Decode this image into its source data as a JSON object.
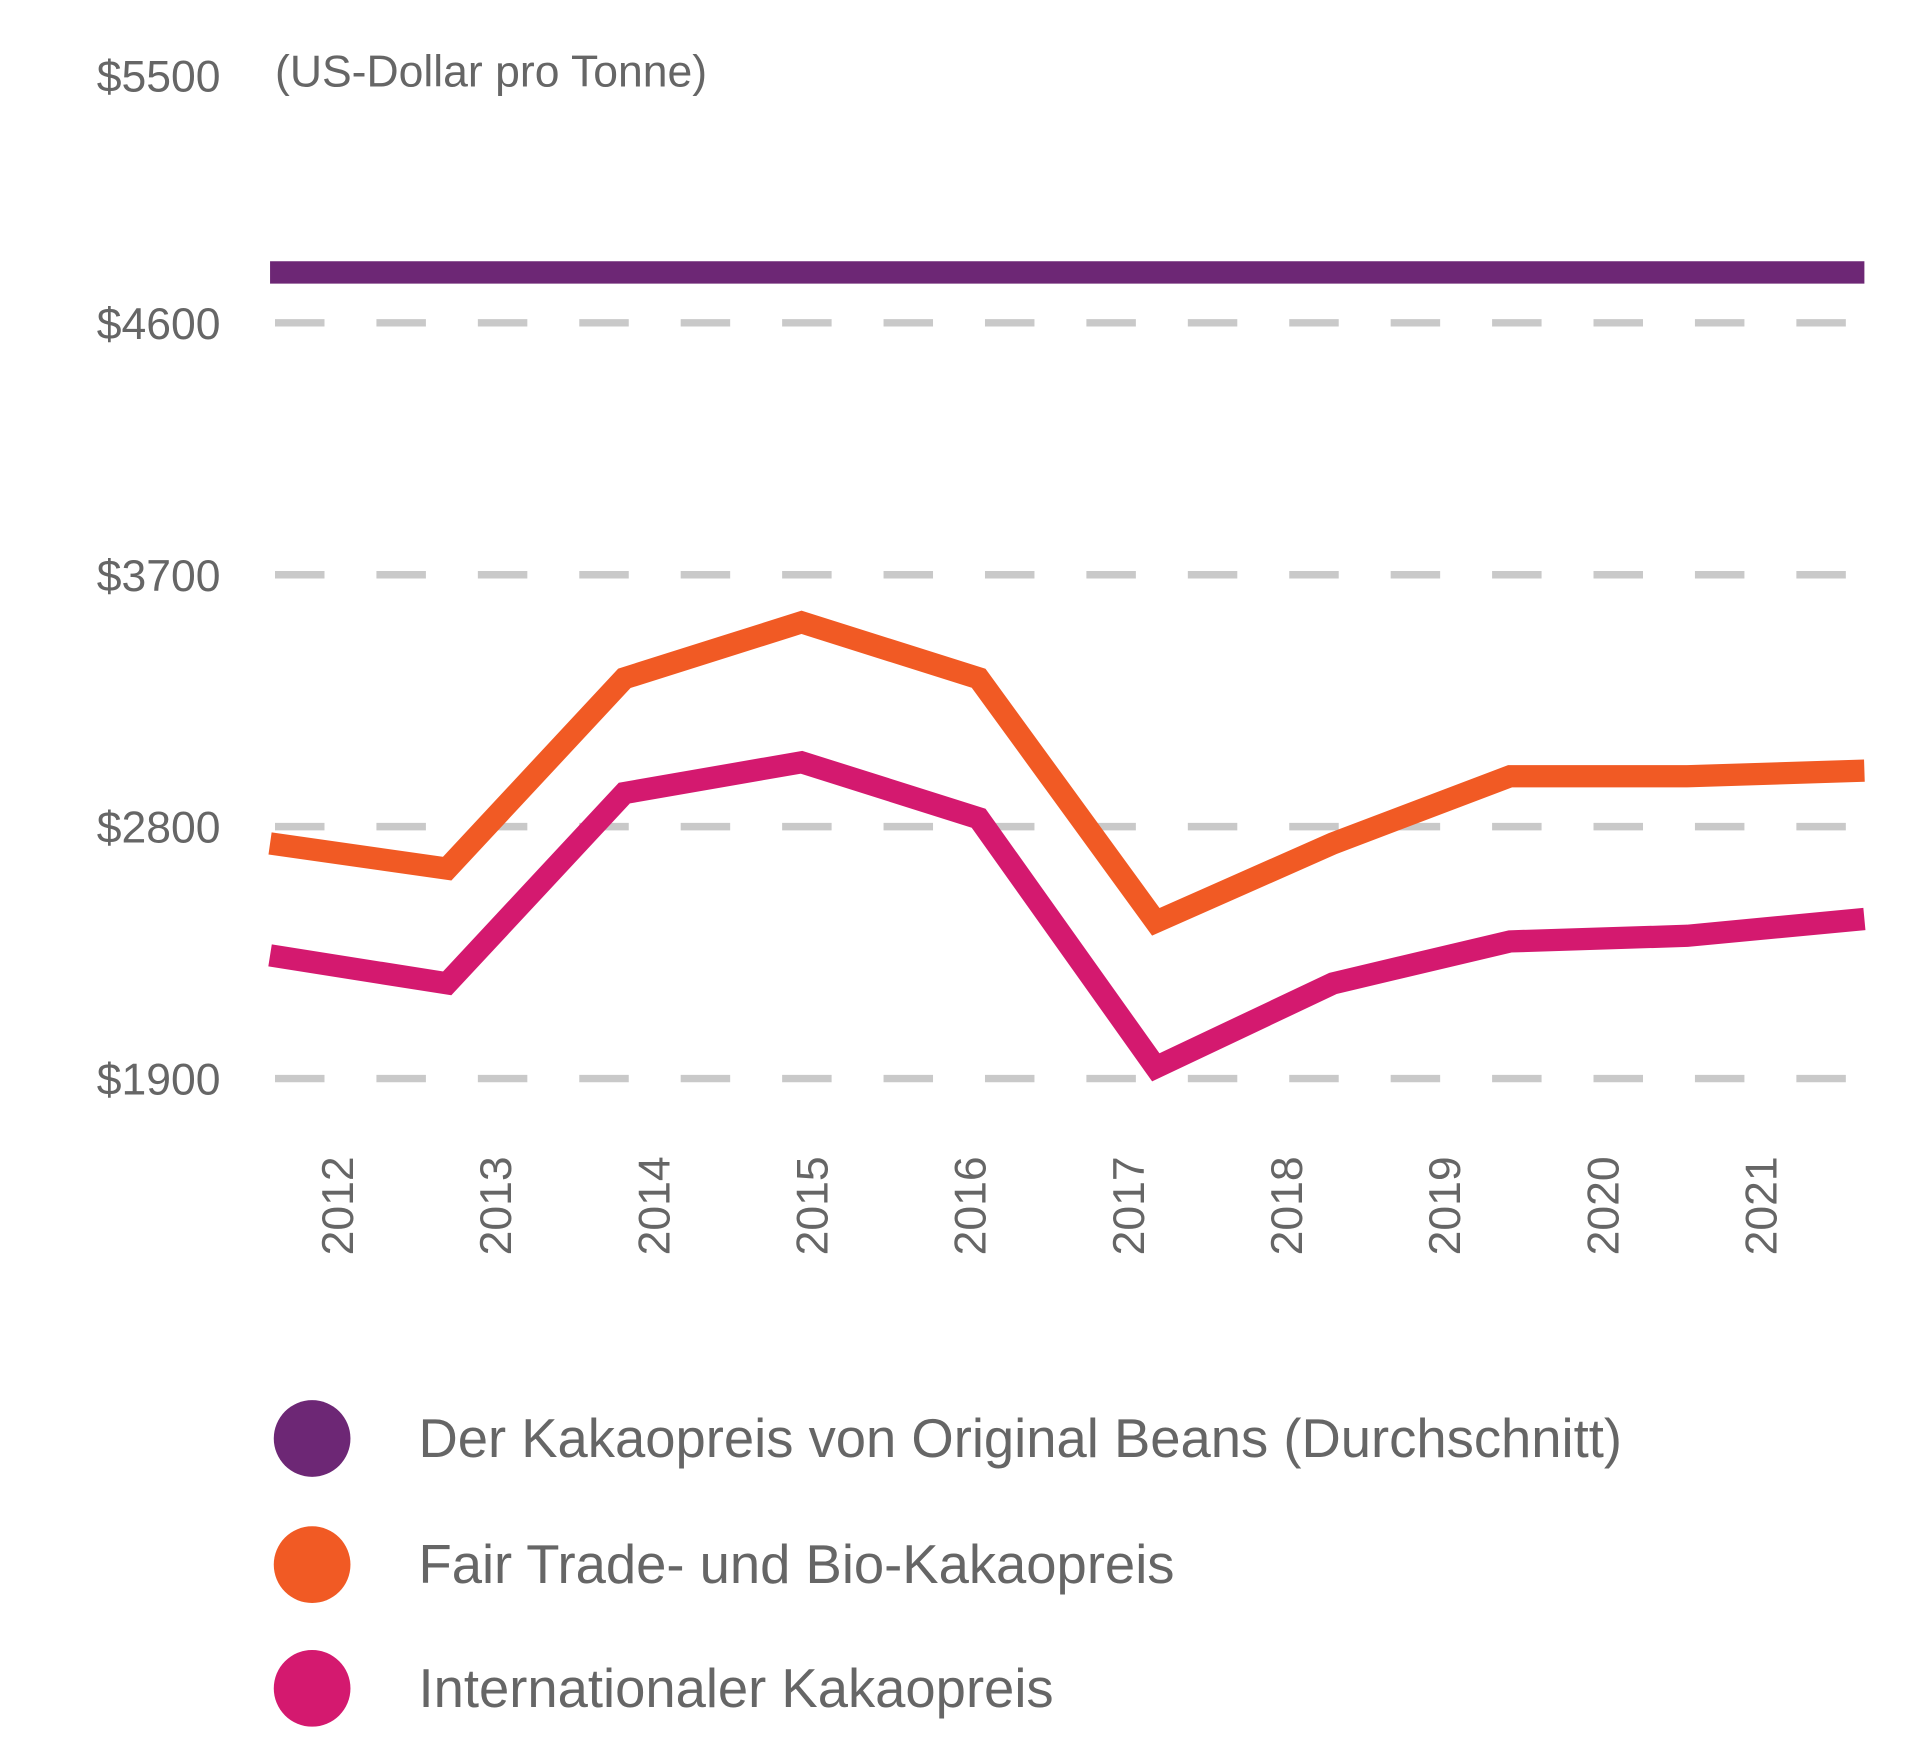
{
  "chart_data": {
    "type": "line",
    "unit_label": "(US-Dollar pro Tonne)",
    "categories": [
      "2012",
      "2013",
      "2014",
      "2015",
      "2016",
      "2017",
      "2018",
      "2019",
      "2020",
      "2021"
    ],
    "x_tick_labels": [
      "2012",
      "2013",
      "2014",
      "2015",
      "2016",
      "2017",
      "2018",
      "2019",
      "2020",
      "2021"
    ],
    "y_tick_labels": [
      "$5500",
      "$4600",
      "$3700",
      "$2800",
      "$1900"
    ],
    "y_ticks": [
      5500,
      4600,
      3700,
      2800,
      1900
    ],
    "ylim": [
      1900,
      5500
    ],
    "grid": true,
    "gridlines_at": [
      4600,
      3700,
      2800,
      1900
    ],
    "legend_placement": "bottom",
    "series": [
      {
        "name": "Der Kakaopreis von Original Beans (Durchschnitt)",
        "color": "#6d2775",
        "values": [
          4780,
          4780,
          4780,
          4780,
          4780,
          4780,
          4780,
          4780,
          4780,
          4780
        ]
      },
      {
        "name": "Fair Trade- und Bio-Kakaopreis",
        "color": "#f15a24",
        "values": [
          2740,
          2650,
          3330,
          3530,
          3330,
          2460,
          2740,
          2980,
          2980,
          3000
        ]
      },
      {
        "name": "Internationaler Kakaopreis",
        "color": "#d4196f",
        "values": [
          2340,
          2240,
          2920,
          3030,
          2830,
          1940,
          2240,
          2390,
          2410,
          2470
        ]
      }
    ]
  }
}
